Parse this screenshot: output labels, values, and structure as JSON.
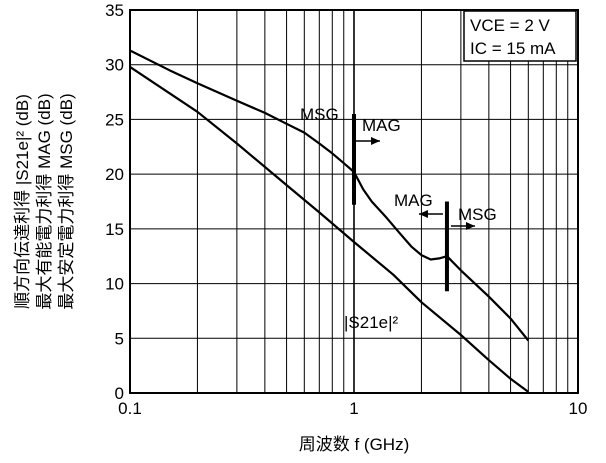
{
  "chart_data": {
    "type": "line",
    "x_scale": "log",
    "xlim": [
      0.1,
      10
    ],
    "ylim": [
      0,
      35
    ],
    "x_ticks": [
      0.1,
      1,
      10
    ],
    "x_tick_labels": [
      "0.1",
      "1",
      "10"
    ],
    "y_ticks": [
      0,
      5,
      10,
      15,
      20,
      25,
      30,
      35
    ],
    "y_tick_labels": [
      "0",
      "5",
      "10",
      "15",
      "20",
      "25",
      "30",
      "35"
    ],
    "xlabel": "周波数  f (GHz)",
    "ylabel_lines": [
      "順方向伝達利得 |S21e|² (dB)",
      "最大有能電力利得 MAG (dB)",
      "最大安定電力利得 MSG (dB)"
    ],
    "conditions": [
      "VCE = 2 V",
      "IC = 15 mA"
    ],
    "grid": true,
    "series": [
      {
        "name": "MSG / MAG",
        "x": [
          0.1,
          0.15,
          0.2,
          0.3,
          0.4,
          0.5,
          0.6,
          0.7,
          0.8,
          0.9,
          1.0,
          1.1,
          1.2,
          1.4,
          1.6,
          1.8,
          2.0,
          2.2,
          2.4,
          2.6,
          3.0,
          4.0,
          5.0,
          6.0
        ],
        "y": [
          31.3,
          29.5,
          28.3,
          26.7,
          25.6,
          24.6,
          23.8,
          22.8,
          21.9,
          21.0,
          20.2,
          18.6,
          17.5,
          16.0,
          14.6,
          13.4,
          12.6,
          12.2,
          12.3,
          12.5,
          11.2,
          8.8,
          6.8,
          4.8
        ]
      },
      {
        "name": "|S21e|²",
        "x": [
          0.1,
          0.2,
          0.3,
          0.5,
          0.7,
          1.0,
          1.5,
          2.0,
          3.0,
          4.0,
          5.0,
          6.0
        ],
        "y": [
          29.8,
          25.7,
          22.8,
          19.0,
          16.5,
          13.8,
          10.8,
          8.3,
          5.3,
          3.0,
          1.3,
          0.1
        ]
      }
    ],
    "annotations": [
      {
        "text": "MSG",
        "role": "left-of-boundary-1"
      },
      {
        "text": "MAG",
        "role": "right-of-boundary-1"
      },
      {
        "text": "MAG",
        "role": "left-of-boundary-2"
      },
      {
        "text": "MSG",
        "role": "right-of-boundary-2"
      },
      {
        "text": "|S21e|²",
        "role": "s21-curve-label"
      }
    ],
    "boundaries": [
      {
        "x": 1.0,
        "y_range": [
          17.2,
          25.5
        ]
      },
      {
        "x": 2.6,
        "y_range": [
          9.3,
          17.5
        ]
      }
    ]
  }
}
